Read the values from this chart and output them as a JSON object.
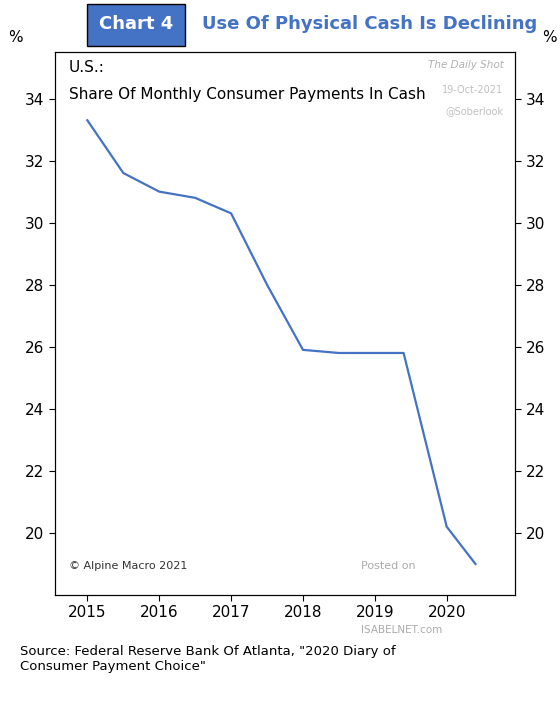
{
  "title_box_text": "Chart 4",
  "title_text": "Use Of Physical Cash Is Declining",
  "subtitle_line1": "U.S.:",
  "subtitle_line2": "Share Of Monthly Consumer Payments In Cash",
  "watermark1": "The Daily Shot",
  "watermark2": "19-Oct-2021",
  "watermark3": "@Soberlook",
  "watermark4": "Posted on",
  "watermark5": "ISABELNET.com",
  "source_text": "Source: Federal Reserve Bank Of Atlanta, \"2020 Diary of\nConsumer Payment Choice\"",
  "copyright_text": "© Alpine Macro 2021",
  "x_values": [
    2015.0,
    2015.5,
    2016.0,
    2016.5,
    2017.0,
    2017.5,
    2018.0,
    2018.5,
    2019.0,
    2019.4,
    2020.0,
    2020.4
  ],
  "y_values": [
    33.3,
    31.6,
    31.0,
    30.8,
    30.3,
    28.0,
    25.9,
    25.8,
    25.8,
    25.8,
    20.2,
    19.0
  ],
  "line_color": "#4472C4",
  "line_width": 1.6,
  "ylim": [
    18.0,
    35.5
  ],
  "yticks": [
    20,
    22,
    24,
    26,
    28,
    30,
    32,
    34
  ],
  "xlim": [
    2014.55,
    2020.95
  ],
  "xticks": [
    2015,
    2016,
    2017,
    2018,
    2019,
    2020
  ],
  "ylabel_left": "%",
  "ylabel_right": "%",
  "header_bg_color": "#4472C4",
  "header_text_color": "#ffffff",
  "title_color": "#4472C4",
  "background_color": "#ffffff",
  "fig_bg_color": "#ffffff"
}
